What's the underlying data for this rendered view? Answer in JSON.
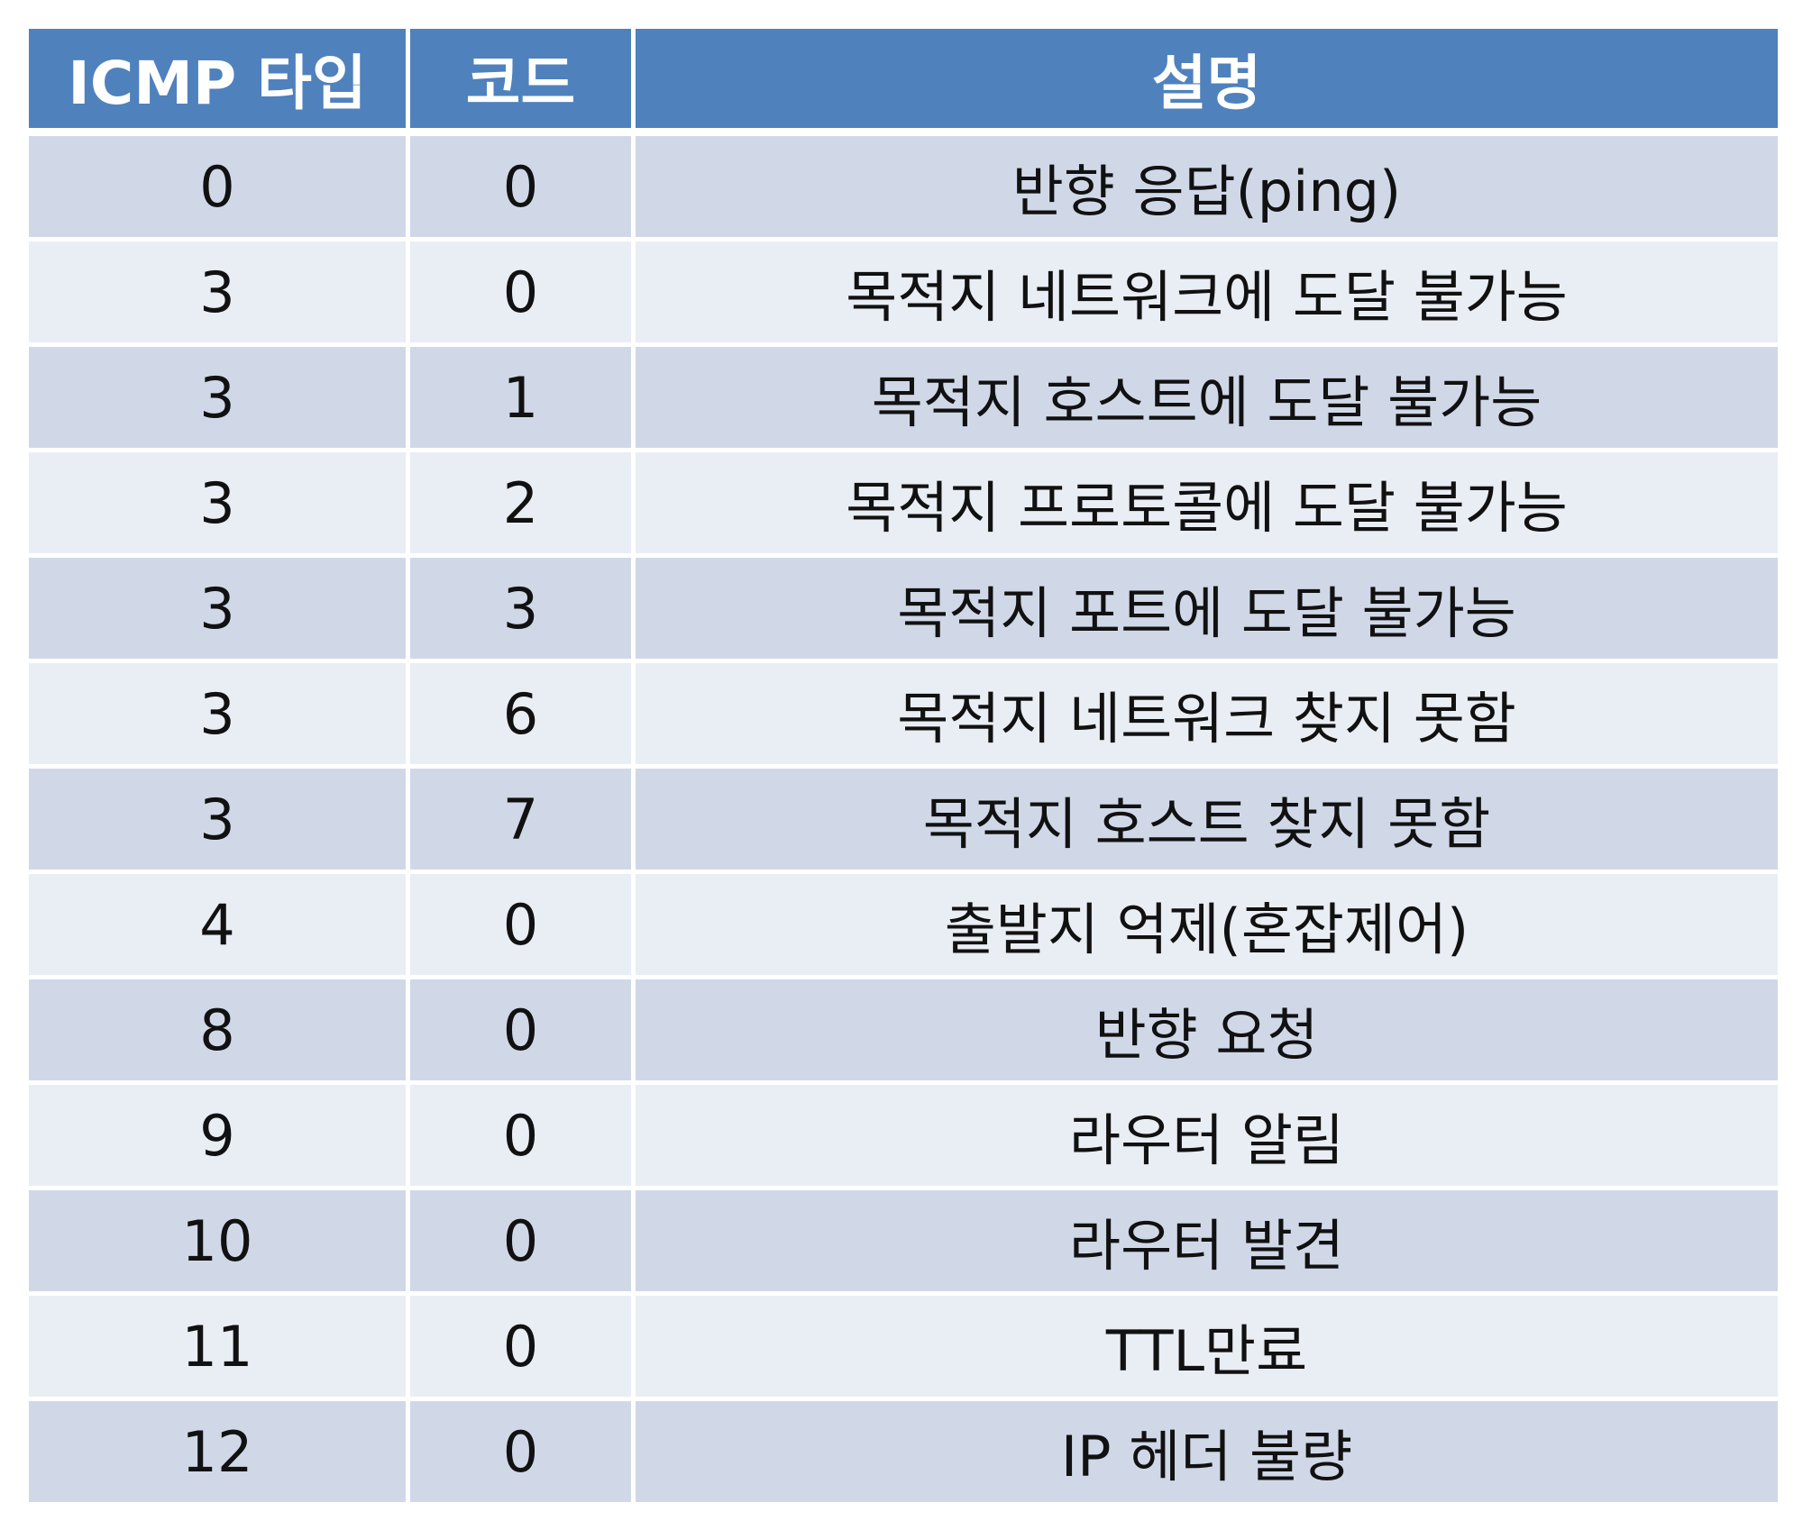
{
  "table": {
    "headers": [
      "ICMP 타입",
      "코드",
      "설명"
    ],
    "rows": [
      [
        "0",
        "0",
        "반향 응답(ping)"
      ],
      [
        "3",
        "0",
        "목적지 네트워크에 도달 불가능"
      ],
      [
        "3",
        "1",
        "목적지 호스트에 도달 불가능"
      ],
      [
        "3",
        "2",
        "목적지 프로토콜에 도달 불가능"
      ],
      [
        "3",
        "3",
        "목적지 포트에 도달 불가능"
      ],
      [
        "3",
        "6",
        "목적지 네트워크 찾지 못함"
      ],
      [
        "3",
        "7",
        "목적지 호스트 찾지 못함"
      ],
      [
        "4",
        "0",
        "출발지 억제(혼잡제어)"
      ],
      [
        "8",
        "0",
        "반향 요청"
      ],
      [
        "9",
        "0",
        "라우터 알림"
      ],
      [
        "10",
        "0",
        "라우터 발견"
      ],
      [
        "11",
        "0",
        "TTL만료"
      ],
      [
        "12",
        "0",
        "IP 헤더 불량"
      ]
    ],
    "colors": {
      "header_bg": "#4f81bd",
      "header_text": "#ffffff",
      "row_band_dark": "#d0d8e8",
      "row_band_light": "#e9edf4"
    }
  }
}
